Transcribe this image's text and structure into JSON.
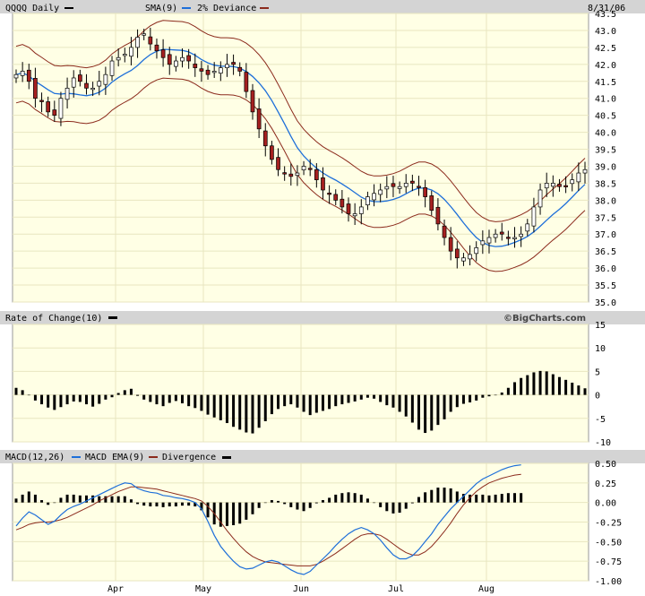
{
  "colors": {
    "plot_bg": "#FFFFE5",
    "header_bg": "#D4D4D4",
    "grid": "#E8E6C0",
    "up_candle": "#FFFFFF",
    "down_candle": "#A52020",
    "candle_outline": "#000000",
    "sma": "#1E6FD9",
    "band": "#8B2A1C",
    "bars": "#000000",
    "macd": "#1E6FD9",
    "signal": "#8B2A1C"
  },
  "price_panel": {
    "symbol_label": "QQQQ Daily",
    "sma_label": "SMA(9)",
    "deviance_label": "2% Deviance",
    "date_label": "8/31/06",
    "y_ticks": [
      "43.5",
      "43.0",
      "42.5",
      "42.0",
      "41.5",
      "41.0",
      "40.5",
      "40.0",
      "39.5",
      "39.0",
      "38.5",
      "38.0",
      "37.5",
      "37.0",
      "36.5",
      "36.0",
      "35.5",
      "35.0"
    ]
  },
  "roc_panel": {
    "label": "Rate of Change(10)",
    "brand": "©BigCharts.com",
    "y_ticks": [
      "15",
      "10",
      "5",
      "0",
      "-5",
      "-10"
    ]
  },
  "macd_panel": {
    "label": "MACD(12,26)",
    "ema_label": "MACD EMA(9)",
    "divergence_label": "Divergence",
    "y_ticks": [
      "0.50",
      "0.25",
      "0.00",
      "-0.25",
      "-0.50",
      "-0.75",
      "-1.00"
    ]
  },
  "x_axis": {
    "months": [
      "Apr",
      "May",
      "Jun",
      "Jul",
      "Aug"
    ]
  },
  "chart_data": [
    {
      "type": "candlestick",
      "title": "QQQQ Daily",
      "ylim": [
        35.0,
        43.5
      ],
      "series": [
        {
          "name": "QQQQ Daily",
          "values": [
            41.7,
            41.8,
            41.5,
            41.0,
            40.9,
            40.6,
            40.5,
            41.0,
            41.3,
            41.6,
            41.5,
            41.3,
            41.3,
            41.5,
            41.7,
            42.1,
            42.2,
            42.3,
            42.5,
            42.8,
            42.9,
            42.6,
            42.4,
            42.2,
            42.0,
            42.1,
            42.2,
            42.1,
            41.9,
            41.8,
            41.7,
            41.8,
            41.9,
            42.0,
            42.0,
            41.8,
            41.2,
            40.6,
            40.1,
            39.6,
            39.2,
            38.9,
            38.8,
            38.7,
            38.8,
            39.0,
            38.9,
            38.6,
            38.3,
            38.2,
            38.0,
            37.8,
            37.6,
            37.6,
            37.8,
            38.1,
            38.2,
            38.3,
            38.4,
            38.4,
            38.4,
            38.5,
            38.5,
            38.4,
            38.1,
            37.7,
            37.3,
            36.9,
            36.5,
            36.3,
            36.3,
            36.4,
            36.6,
            36.8,
            36.9,
            37.0,
            37.0,
            36.9,
            36.9,
            37.0,
            37.3,
            37.8,
            38.3,
            38.5,
            38.5,
            38.4,
            38.4,
            38.6,
            38.8,
            38.9
          ]
        },
        {
          "name": "SMA(9)",
          "values": []
        },
        {
          "name": "2% Deviance",
          "values": []
        }
      ]
    },
    {
      "type": "bar",
      "title": "Rate of Change(10)",
      "ylim": [
        -10,
        15
      ],
      "series": [
        {
          "name": "Rate of Change(10)",
          "values": [
            1.5,
            1.0,
            0,
            -1.2,
            -2.0,
            -2.7,
            -3.2,
            -2.6,
            -2.0,
            -1.4,
            -1.5,
            -2.0,
            -2.5,
            -1.9,
            -1.0,
            -0.5,
            0.4,
            1.0,
            1.3,
            -0.2,
            -1.0,
            -1.5,
            -2.0,
            -2.4,
            -1.7,
            -1.3,
            -1.8,
            -2.4,
            -2.8,
            -3.4,
            -4.2,
            -4.8,
            -5.4,
            -6.0,
            -6.8,
            -7.4,
            -8.0,
            -8.2,
            -7.0,
            -5.6,
            -4.1,
            -3.0,
            -2.4,
            -2.0,
            -2.7,
            -3.6,
            -4.3,
            -3.8,
            -3.4,
            -3.0,
            -2.4,
            -2.0,
            -1.7,
            -1.4,
            -1.0,
            -0.6,
            -0.8,
            -1.5,
            -2.2,
            -2.7,
            -3.6,
            -4.6,
            -5.9,
            -7.4,
            -8.1,
            -7.6,
            -6.4,
            -5.2,
            -3.6,
            -2.6,
            -1.9,
            -1.6,
            -1.2,
            -0.6,
            -0.3,
            0,
            0.5,
            1.5,
            2.7,
            3.6,
            4.2,
            4.8,
            5.1,
            5.0,
            4.4,
            3.8,
            3.2,
            2.6,
            2.0,
            1.4
          ]
        }
      ]
    },
    {
      "type": "line",
      "title": "MACD(12,26)",
      "ylim": [
        -1.0,
        0.5
      ],
      "series": [
        {
          "name": "MACD(12,26)",
          "values": [
            -0.3,
            -0.2,
            -0.12,
            -0.16,
            -0.22,
            -0.28,
            -0.24,
            -0.16,
            -0.09,
            -0.05,
            -0.02,
            0.02,
            0.06,
            0.1,
            0.14,
            0.18,
            0.22,
            0.25,
            0.24,
            0.18,
            0.15,
            0.13,
            0.12,
            0.09,
            0.08,
            0.06,
            0.05,
            0.03,
            0.0,
            -0.08,
            -0.24,
            -0.42,
            -0.56,
            -0.66,
            -0.75,
            -0.82,
            -0.85,
            -0.84,
            -0.8,
            -0.76,
            -0.74,
            -0.76,
            -0.81,
            -0.86,
            -0.9,
            -0.92,
            -0.88,
            -0.8,
            -0.72,
            -0.64,
            -0.55,
            -0.47,
            -0.4,
            -0.35,
            -0.32,
            -0.35,
            -0.4,
            -0.48,
            -0.58,
            -0.67,
            -0.72,
            -0.72,
            -0.68,
            -0.6,
            -0.5,
            -0.4,
            -0.28,
            -0.18,
            -0.08,
            0.0,
            0.08,
            0.16,
            0.24,
            0.3,
            0.34,
            0.38,
            0.42,
            0.45,
            0.47,
            0.48
          ]
        },
        {
          "name": "MACD EMA(9)",
          "values": [
            -0.35,
            -0.32,
            -0.28,
            -0.26,
            -0.25,
            -0.25,
            -0.24,
            -0.22,
            -0.19,
            -0.15,
            -0.11,
            -0.07,
            -0.03,
            0.02,
            0.06,
            0.1,
            0.14,
            0.17,
            0.2,
            0.2,
            0.19,
            0.18,
            0.17,
            0.15,
            0.13,
            0.11,
            0.09,
            0.07,
            0.05,
            0.02,
            -0.05,
            -0.14,
            -0.25,
            -0.36,
            -0.46,
            -0.55,
            -0.63,
            -0.69,
            -0.73,
            -0.76,
            -0.77,
            -0.78,
            -0.79,
            -0.8,
            -0.81,
            -0.81,
            -0.81,
            -0.79,
            -0.75,
            -0.7,
            -0.65,
            -0.59,
            -0.53,
            -0.47,
            -0.42,
            -0.4,
            -0.4,
            -0.42,
            -0.47,
            -0.53,
            -0.59,
            -0.64,
            -0.67,
            -0.67,
            -0.63,
            -0.56,
            -0.47,
            -0.37,
            -0.26,
            -0.14,
            -0.03,
            0.06,
            0.14,
            0.2,
            0.25,
            0.28,
            0.31,
            0.33,
            0.35,
            0.36
          ]
        },
        {
          "name": "Divergence",
          "values": [
            0.05,
            0.1,
            0.14,
            0.1,
            0.03,
            -0.03,
            0.0,
            0.06,
            0.1,
            0.1,
            0.09,
            0.09,
            0.09,
            0.08,
            0.08,
            0.08,
            0.08,
            0.08,
            0.04,
            -0.02,
            -0.04,
            -0.05,
            -0.05,
            -0.06,
            -0.05,
            -0.05,
            -0.04,
            -0.04,
            -0.05,
            -0.1,
            -0.19,
            -0.28,
            -0.31,
            -0.3,
            -0.29,
            -0.27,
            -0.22,
            -0.15,
            -0.07,
            0.0,
            0.03,
            0.02,
            -0.02,
            -0.06,
            -0.09,
            -0.11,
            -0.07,
            -0.01,
            0.03,
            0.06,
            0.1,
            0.12,
            0.13,
            0.12,
            0.1,
            0.05,
            0.0,
            -0.06,
            -0.11,
            -0.14,
            -0.13,
            -0.08,
            -0.01,
            0.07,
            0.13,
            0.16,
            0.19,
            0.19,
            0.18,
            0.14,
            0.11,
            0.1,
            0.1,
            0.1,
            0.09,
            0.1,
            0.11,
            0.12,
            0.12,
            0.12
          ]
        }
      ]
    }
  ]
}
